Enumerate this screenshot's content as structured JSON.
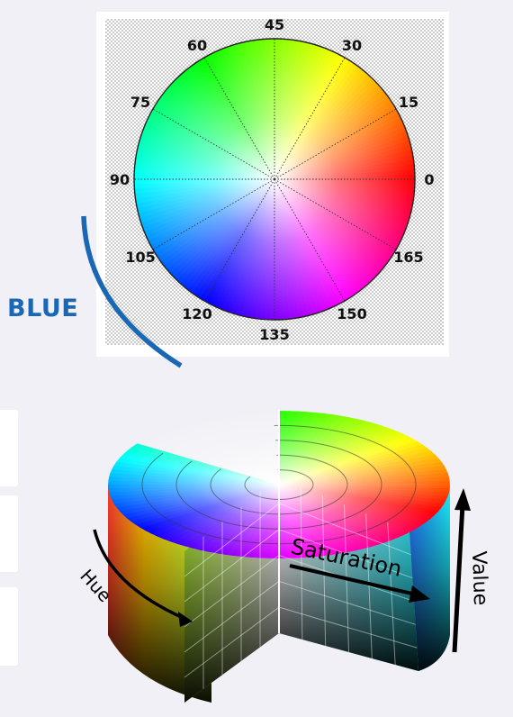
{
  "hue_wheel": {
    "angle_labels": [
      "0",
      "15",
      "30",
      "45",
      "60",
      "75",
      "90",
      "105",
      "120",
      "135",
      "150",
      "165"
    ]
  },
  "highlight": {
    "label": "BLUE",
    "color": "#1a67b5"
  },
  "hsv_cylinder": {
    "axis_labels": {
      "hue": "Hue",
      "saturation": "Saturation",
      "value": "Value"
    }
  },
  "colors": {
    "background": "#f0f0f6",
    "panel": "#ffffff",
    "arc": "#1a67b5"
  }
}
